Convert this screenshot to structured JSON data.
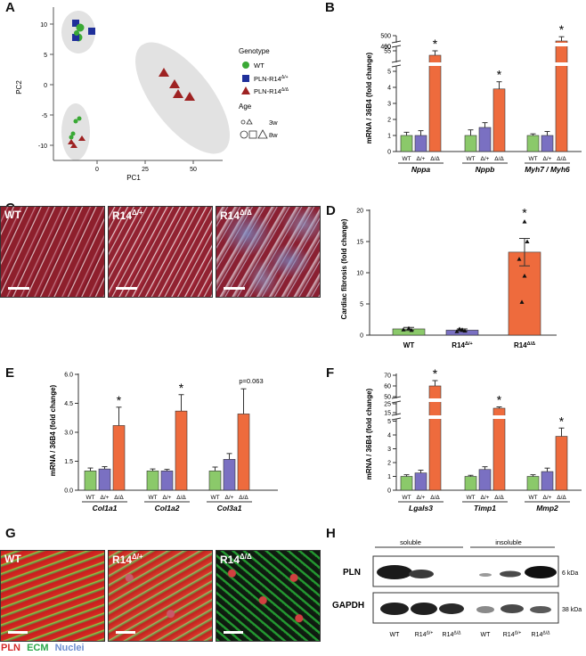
{
  "panels": {
    "A": {
      "letter": "A",
      "xlabel": "PC1",
      "ylabel": "PC2",
      "xticks": [
        "0",
        "25",
        "50"
      ],
      "yticks": [
        "10",
        "5",
        "0",
        "-5",
        "-10"
      ],
      "legend": {
        "genotype_title": "Genotype",
        "genotypes": [
          "WT",
          "PLN-R14",
          "PLN-R14"
        ],
        "genotype_sups": [
          "",
          "Δ/+",
          "Δ/Δ"
        ],
        "age_title": "Age",
        "ages": [
          "3w",
          "8w"
        ]
      },
      "colors": {
        "WT": "#3aa935",
        "het": "#1f2f9a",
        "hom": "#9e2222",
        "ellipse": "#e0e0e0"
      }
    },
    "B": {
      "letter": "B",
      "ylabel": "mRNA / 36B4 (fold change)",
      "yticks_low": [
        "0",
        "1",
        "2",
        "3",
        "4",
        "5"
      ],
      "yticks_high": [
        "40",
        "55",
        "60",
        "400",
        "500"
      ],
      "groups": [
        "Nppa",
        "Nppb",
        "Myh7 / Myh6"
      ],
      "xticks": [
        "WT",
        "Δ/+",
        "Δ/Δ"
      ],
      "star": "*"
    },
    "C": {
      "letter": "C",
      "labels": [
        "WT",
        "R14",
        "R14"
      ],
      "sups": [
        "",
        "Δ/+",
        "Δ/Δ"
      ]
    },
    "D": {
      "letter": "D",
      "ylabel": "Cardiac fibrosis (fold change)",
      "yticks": [
        "0",
        "5",
        "10",
        "15",
        "20"
      ],
      "categories": [
        "WT",
        "R14",
        "R14"
      ],
      "sups": [
        "",
        "Δ/+",
        "Δ/Δ"
      ],
      "star": "*"
    },
    "E": {
      "letter": "E",
      "ylabel": "mRNA / 36B4 (fold change)",
      "yticks": [
        "0.0",
        "1.5",
        "3.0",
        "4.5",
        "6.0"
      ],
      "groups": [
        "Col1a1",
        "Col1a2",
        "Col3a1"
      ],
      "xticks": [
        "WT",
        "Δ/+",
        "Δ/Δ"
      ],
      "pvalue": "p=0.063",
      "star": "*"
    },
    "F": {
      "letter": "F",
      "ylabel": "mRNA / 36B4 (fold change)",
      "yticks_low": [
        "0",
        "1",
        "2",
        "3",
        "4",
        "5"
      ],
      "yticks_high": [
        "15",
        "25",
        "50",
        "60",
        "70"
      ],
      "groups": [
        "Lgals3",
        "Timp1",
        "Mmp2"
      ],
      "xticks": [
        "WT",
        "Δ/+",
        "Δ/Δ"
      ],
      "star": "*"
    },
    "G": {
      "letter": "G",
      "labels": [
        "WT",
        "R14",
        "R14"
      ],
      "sups": [
        "",
        "Δ/+",
        "Δ/Δ"
      ],
      "legend": [
        "PLN",
        "ECM",
        "Nuclei"
      ],
      "legend_colors": [
        "#d42a2a",
        "#2aa84a",
        "#6e8fd0"
      ]
    },
    "H": {
      "letter": "H",
      "fractions": [
        "soluble",
        "insoluble"
      ],
      "rows": [
        "PLN",
        "GAPDH"
      ],
      "sizes": [
        "6 kDa",
        "38 kDa"
      ],
      "lanes": [
        "WT",
        "R14",
        "R14",
        "WT",
        "R14",
        "R14"
      ],
      "lane_sups": [
        "",
        "Δ/+",
        "Δ/Δ",
        "",
        "Δ/+",
        "Δ/Δ"
      ]
    }
  },
  "chart_data": [
    {
      "panel": "A",
      "type": "scatter",
      "xlabel": "PC1",
      "ylabel": "PC2",
      "series": [
        {
          "name": "WT",
          "points": [
            [
              -11,
              9.5
            ],
            [
              -10,
              8.5
            ],
            [
              -9,
              9
            ],
            [
              -11,
              -5.5
            ],
            [
              -10,
              -4.5
            ],
            [
              -13,
              -7.5
            ],
            [
              -12,
              -7
            ]
          ]
        },
        {
          "name": "PLN-R14Δ/+",
          "points": [
            [
              -12,
              10
            ],
            [
              -5,
              9
            ],
            [
              -11,
              8
            ],
            [
              -12,
              7.5
            ],
            [
              -13,
              -8.5
            ],
            [
              -12,
              -9
            ]
          ]
        },
        {
          "name": "PLN-R14Δ/Δ",
          "points": [
            [
              33,
              2.5
            ],
            [
              38,
              -0.5
            ],
            [
              40,
              -1.5
            ],
            [
              45,
              -2
            ],
            [
              -12,
              -8.5
            ],
            [
              -7,
              -8
            ]
          ]
        }
      ]
    },
    {
      "panel": "B",
      "type": "bar",
      "categories": [
        "Nppa",
        "Nppb",
        "Myh7 / Myh6"
      ],
      "series": [
        {
          "name": "WT",
          "values": [
            1.0,
            1.0,
            1.0
          ],
          "errors": [
            0.2,
            0.35,
            0.1
          ]
        },
        {
          "name": "Δ/+",
          "values": [
            1.0,
            1.5,
            1.0
          ],
          "errors": [
            0.3,
            0.3,
            0.25
          ]
        },
        {
          "name": "Δ/Δ",
          "values": [
            50,
            3.9,
            450
          ],
          "errors": [
            5,
            0.45,
            40
          ]
        }
      ]
    },
    {
      "panel": "D",
      "type": "bar",
      "categories": [
        "WT",
        "R14Δ/+",
        "R14Δ/Δ"
      ],
      "values": [
        1.0,
        0.8,
        13.3
      ],
      "errors": [
        0.25,
        0.2,
        2.2
      ],
      "points": [
        [
          1.1,
          0.8,
          0.9
        ],
        [
          0.9,
          0.7,
          0.6,
          0.8,
          1.0
        ],
        [
          18.2,
          15.0,
          12.2,
          9.5,
          5.3
        ]
      ],
      "ylim": [
        0,
        20
      ]
    },
    {
      "panel": "E",
      "type": "bar",
      "categories": [
        "Col1a1",
        "Col1a2",
        "Col3a1"
      ],
      "ylim": [
        0,
        6
      ],
      "series": [
        {
          "name": "WT",
          "values": [
            1.0,
            1.0,
            1.0
          ],
          "errors": [
            0.15,
            0.1,
            0.2
          ]
        },
        {
          "name": "Δ/+",
          "values": [
            1.1,
            1.0,
            1.6
          ],
          "errors": [
            0.12,
            0.08,
            0.3
          ]
        },
        {
          "name": "Δ/Δ",
          "values": [
            3.35,
            4.1,
            3.95
          ],
          "errors": [
            0.95,
            0.85,
            1.3
          ]
        }
      ]
    },
    {
      "panel": "F",
      "type": "bar",
      "categories": [
        "Lgals3",
        "Timp1",
        "Mmp2"
      ],
      "series": [
        {
          "name": "WT",
          "values": [
            1.0,
            1.0,
            1.0
          ],
          "errors": [
            0.12,
            0.08,
            0.12
          ]
        },
        {
          "name": "Δ/+",
          "values": [
            1.25,
            1.5,
            1.35
          ],
          "errors": [
            0.2,
            0.2,
            0.25
          ]
        },
        {
          "name": "Δ/Δ",
          "values": [
            60,
            20,
            3.9
          ],
          "errors": [
            5,
            1.5,
            0.6
          ]
        }
      ]
    }
  ]
}
